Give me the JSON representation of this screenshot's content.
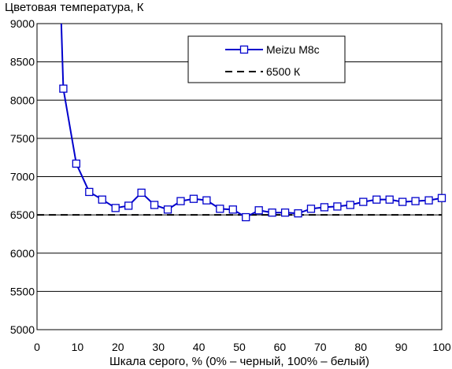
{
  "chart_data": {
    "type": "line",
    "ylabel": "Цветовая температура, К",
    "xlabel": "Шкала серого, % (0% – черный, 100% – белый)",
    "xlim": [
      0,
      100
    ],
    "ylim": [
      5000,
      9000
    ],
    "xticks": [
      "0",
      "10",
      "20",
      "30",
      "40",
      "50",
      "60",
      "70",
      "80",
      "90",
      "100"
    ],
    "yticks": [
      "5000",
      "5500",
      "6000",
      "6500",
      "7000",
      "7500",
      "8000",
      "8500",
      "9000"
    ],
    "grid": "horizontal",
    "legend_position": "top-right",
    "series": [
      {
        "name": "Meizu M8c",
        "color": "#0000cc",
        "marker": "square",
        "x": [
          6,
          6.5,
          9.7,
          12.9,
          16.1,
          19.4,
          22.6,
          25.8,
          29,
          32.3,
          35.5,
          38.7,
          41.9,
          45.2,
          48.4,
          51.6,
          54.8,
          58.1,
          61.3,
          64.5,
          67.7,
          71,
          74.2,
          77.4,
          80.6,
          83.9,
          87.1,
          90.3,
          93.5,
          96.8,
          100
        ],
        "y": [
          9000,
          8150,
          7170,
          6800,
          6700,
          6590,
          6620,
          6790,
          6630,
          6570,
          6680,
          6710,
          6690,
          6580,
          6570,
          6470,
          6560,
          6530,
          6530,
          6520,
          6580,
          6600,
          6610,
          6630,
          6670,
          6700,
          6700,
          6670,
          6680,
          6690,
          6720
        ]
      },
      {
        "name": "6500 К",
        "color": "#000000",
        "style": "dashed",
        "x": [
          0,
          100
        ],
        "y": [
          6500,
          6500
        ]
      }
    ]
  }
}
